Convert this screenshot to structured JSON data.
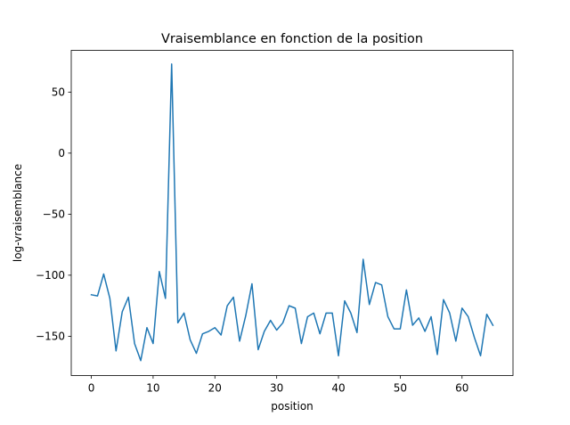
{
  "chart_data": {
    "type": "line",
    "title": "Vraisemblance en fonction de la position",
    "xlabel": "position",
    "ylabel": "log-vraisemblance",
    "xlim": [
      -3.25,
      68.25
    ],
    "ylim": [
      -182.2,
      84.2
    ],
    "xticks": [
      0,
      10,
      20,
      30,
      40,
      50,
      60
    ],
    "yticks": [
      -150,
      -100,
      -50,
      0,
      50
    ],
    "ytick_labels": [
      "−150",
      "−100",
      "−50",
      "0",
      "50"
    ],
    "grid": false,
    "series": [
      {
        "color": "#1f77b4",
        "x": [
          0,
          1,
          2,
          3,
          4,
          5,
          6,
          7,
          8,
          9,
          10,
          11,
          12,
          13,
          14,
          15,
          16,
          17,
          18,
          19,
          20,
          21,
          22,
          23,
          24,
          25,
          26,
          27,
          28,
          29,
          30,
          31,
          32,
          33,
          34,
          35,
          36,
          37,
          38,
          39,
          40,
          41,
          42,
          43,
          44,
          45,
          46,
          47,
          48,
          49,
          50,
          51,
          52,
          53,
          54,
          55,
          56,
          57,
          58,
          59,
          60,
          61,
          62,
          63,
          64,
          65
        ],
        "y": [
          -116,
          -117,
          -99,
          -119,
          -162,
          -130,
          -118,
          -156,
          -170,
          -143,
          -156,
          -97,
          -119,
          73,
          -139,
          -131,
          -153,
          -164,
          -148,
          -146,
          -143,
          -149,
          -125,
          -118,
          -154,
          -133,
          -107,
          -161,
          -146,
          -137,
          -145,
          -139,
          -125,
          -127,
          -156,
          -134,
          -131,
          -148,
          -131,
          -131,
          -166,
          -121,
          -131,
          -147,
          -87,
          -124,
          -106,
          -108,
          -134,
          -144,
          -144,
          -112,
          -141,
          -135,
          -146,
          -134,
          -165,
          -120,
          -131,
          -154,
          -127,
          -134,
          -151,
          -166,
          -132,
          -141
        ]
      }
    ]
  }
}
